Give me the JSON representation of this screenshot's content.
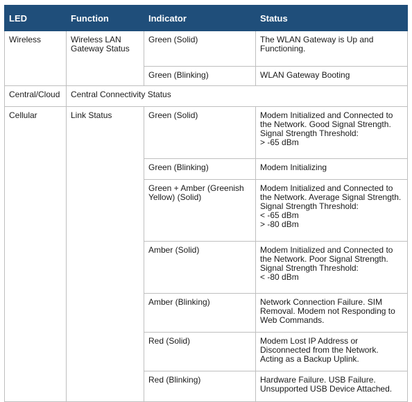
{
  "headers": {
    "led": "LED",
    "function": "Function",
    "indicator": "Indicator",
    "status": "Status"
  },
  "rows": {
    "wireless": {
      "led": "Wireless",
      "function": "Wireless LAN Gateway Status",
      "entries": [
        {
          "indicator": "Green (Solid)",
          "status": [
            "The WLAN Gateway is Up and Functioning."
          ]
        },
        {
          "indicator": "Green (Blinking)",
          "status": [
            "WLAN Gateway Booting"
          ]
        }
      ]
    },
    "central": {
      "led": "Central/Cloud",
      "function": "Central Connectivity Status"
    },
    "cellular": {
      "led": "Cellular",
      "function": "Link Status",
      "entries": [
        {
          "indicator": "Green (Solid)",
          "status": [
            "Modem Initialized and Connected to the Network. Good Signal Strength. Signal Strength Threshold:",
            "> -65 dBm"
          ]
        },
        {
          "indicator": "Green (Blinking)",
          "status": [
            "Modem Initializing"
          ]
        },
        {
          "indicator": "Green + Amber (Greenish Yellow) (Solid)",
          "status": [
            "Modem Initialized and Connected to the Network. Average Signal Strength. Signal Strength Threshold:",
            "< -65 dBm",
            "> -80 dBm"
          ]
        },
        {
          "indicator": "Amber (Solid)",
          "status": [
            "Modem Initialized and Connected to the Network. Poor Signal Strength. Signal Strength Threshold:",
            "< -80 dBm"
          ]
        },
        {
          "indicator": "Amber (Blinking)",
          "status": [
            "Network Connection Failure. SIM Removal. Modem not Responding to Web Commands."
          ]
        },
        {
          "indicator": "Red (Solid)",
          "status": [
            "Modem Lost IP Address or Disconnected from the Network. Acting as a Backup Uplink."
          ]
        },
        {
          "indicator": "Red (Blinking)",
          "status": [
            "Hardware Failure. USB Failure. Unsupported USB Device Attached."
          ]
        }
      ]
    }
  },
  "colors": {
    "header_bg": "#1f4e7a",
    "header_text": "#ffffff",
    "border": "#bfbfbf"
  }
}
